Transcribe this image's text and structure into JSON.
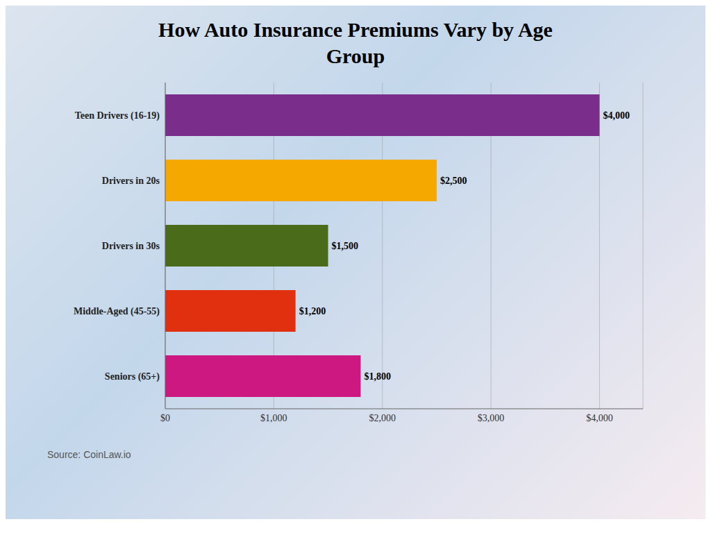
{
  "chart_data": {
    "type": "bar",
    "title": "How Auto Insurance Premiums Vary by Age\nGroup",
    "orientation": "horizontal",
    "categories": [
      "Teen Drivers (16-19)",
      "Drivers in 20s",
      "Drivers in 30s",
      "Middle-Aged (45-55)",
      "Seniors (65+)"
    ],
    "values": [
      4000,
      2500,
      1500,
      1200,
      1800
    ],
    "value_labels": [
      "$4,000",
      "$2,500",
      "$1,500",
      "$1,200",
      "$1,800"
    ],
    "data_labels": true,
    "colors": [
      "#7B2D8B",
      "#F5A800",
      "#4A6B1A",
      "#E03010",
      "#CC1880"
    ],
    "xlim": [
      0,
      4400
    ],
    "xticks": [
      {
        "value": 0,
        "label": "$0"
      },
      {
        "value": 1000,
        "label": "$1,000"
      },
      {
        "value": 2000,
        "label": "$2,000"
      },
      {
        "value": 3000,
        "label": "$3,000"
      },
      {
        "value": 4000,
        "label": "$4,000"
      }
    ],
    "grid": true,
    "annotations": [
      "Source: CoinLaw.io"
    ]
  }
}
